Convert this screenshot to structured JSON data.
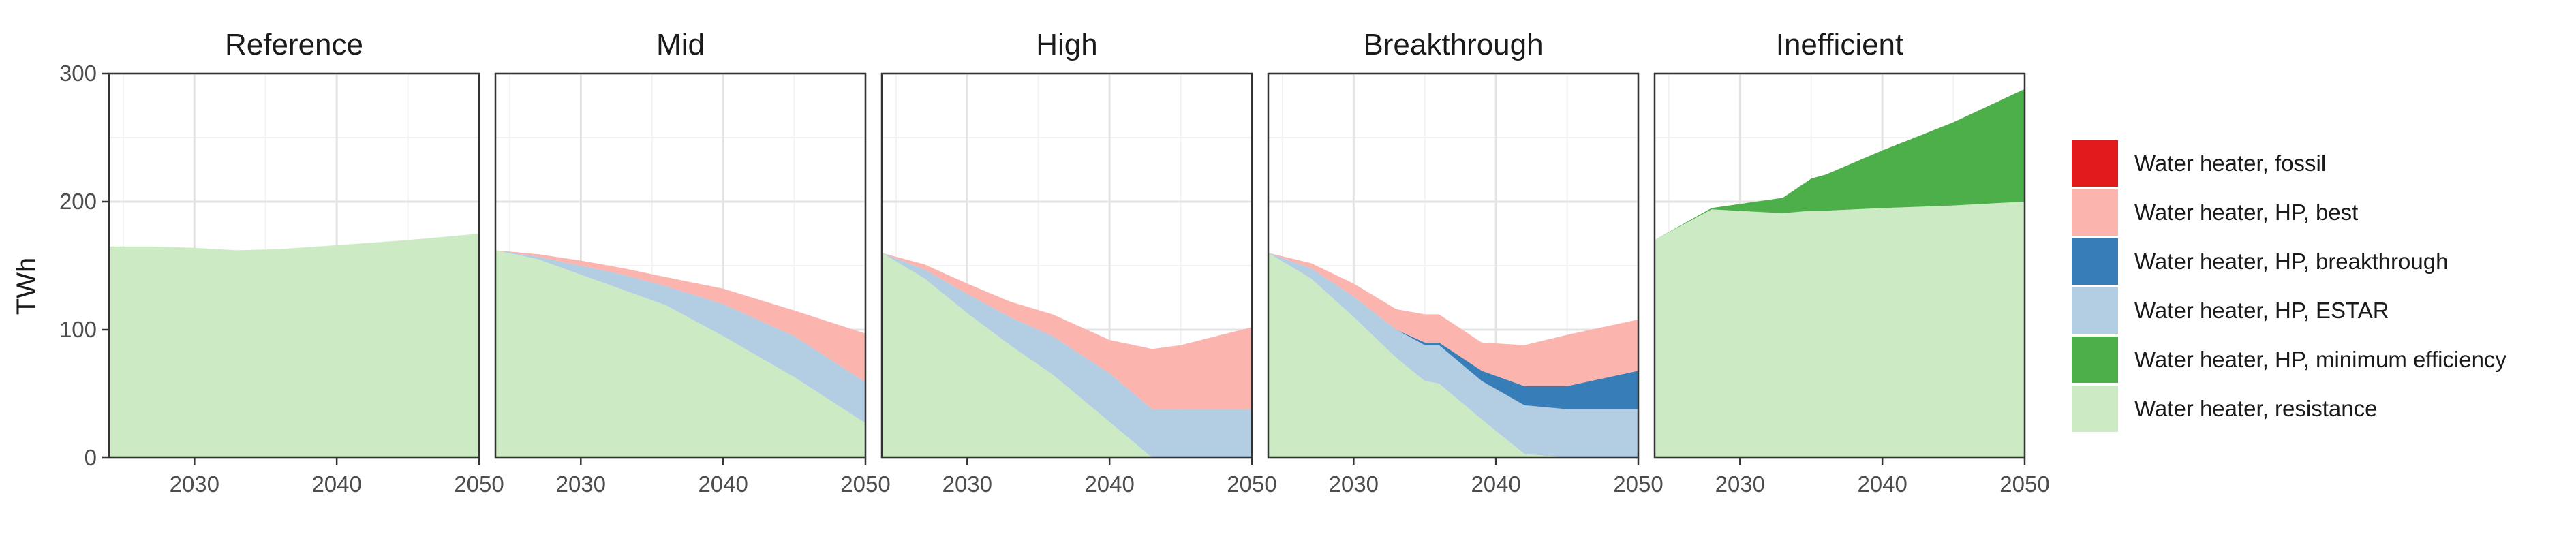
{
  "chart_data": {
    "type": "area",
    "stacked": true,
    "ylabel": "TWh",
    "ylim": [
      0,
      300
    ],
    "xlim": [
      2024,
      2050
    ],
    "x_ticks": [
      2030,
      2040,
      2050
    ],
    "y_ticks": [
      0,
      100,
      200,
      300
    ],
    "grid": true,
    "legend_position": "right",
    "series_order": [
      "Water heater, resistance",
      "Water heater, HP, ESTAR",
      "Water heater, HP, breakthrough",
      "Water heater, HP, best",
      "Water heater, HP, minimum efficiency",
      "Water heater, fossil"
    ],
    "legend": [
      {
        "name": "Water heater, fossil",
        "color": "#e31a1c"
      },
      {
        "name": "Water heater, HP, best",
        "color": "#fbb4ae"
      },
      {
        "name": "Water heater, HP, breakthrough",
        "color": "#377eb8"
      },
      {
        "name": "Water heater, HP, ESTAR",
        "color": "#b3cde3"
      },
      {
        "name": "Water heater, HP, minimum efficiency",
        "color": "#4daf4a"
      },
      {
        "name": "Water heater, resistance",
        "color": "#ccebc5"
      }
    ],
    "panels": [
      {
        "title": "Reference",
        "x": [
          2024,
          2027,
          2030,
          2033,
          2036,
          2040,
          2045,
          2050
        ],
        "series": [
          {
            "name": "Water heater, resistance",
            "values": [
              165,
              165,
              164,
              162,
              163,
              166,
              170,
              175
            ]
          }
        ]
      },
      {
        "title": "Mid",
        "x": [
          2024,
          2027,
          2030,
          2033,
          2036,
          2040,
          2045,
          2050
        ],
        "series": [
          {
            "name": "Water heater, resistance",
            "values": [
              162,
              155,
              143,
              131,
              119,
              95,
              63,
              27
            ]
          },
          {
            "name": "Water heater, HP, ESTAR",
            "values": [
              0,
              2,
              7,
              12,
              15,
              25,
              32,
              32
            ]
          },
          {
            "name": "Water heater, HP, best",
            "values": [
              0,
              2,
              4,
              5,
              7,
              12,
              20,
              38
            ]
          }
        ]
      },
      {
        "title": "High",
        "x": [
          2024,
          2027,
          2030,
          2033,
          2036,
          2040,
          2043,
          2045,
          2050
        ],
        "series": [
          {
            "name": "Water heater, resistance",
            "values": [
              160,
              140,
              113,
              88,
              65,
              28,
              0,
              0,
              0
            ]
          },
          {
            "name": "Water heater, HP, ESTAR",
            "values": [
              0,
              7,
              15,
              22,
              30,
              38,
              38,
              38,
              38
            ]
          },
          {
            "name": "Water heater, HP, best",
            "values": [
              0,
              4,
              8,
              12,
              17,
              26,
              47,
              50,
              64
            ]
          }
        ]
      },
      {
        "title": "Breakthrough",
        "x": [
          2024,
          2027,
          2030,
          2033,
          2035,
          2036,
          2039,
          2042,
          2045,
          2050
        ],
        "series": [
          {
            "name": "Water heater, resistance",
            "values": [
              160,
              140,
              110,
              78,
              60,
              58,
              30,
              3,
              0,
              0
            ]
          },
          {
            "name": "Water heater, HP, ESTAR",
            "values": [
              0,
              8,
              16,
              22,
              28,
              30,
              30,
              38,
              38,
              38
            ]
          },
          {
            "name": "Water heater, HP, breakthrough",
            "values": [
              0,
              0,
              0,
              0,
              2,
              2,
              8,
              15,
              18,
              30
            ]
          },
          {
            "name": "Water heater, HP, best",
            "values": [
              0,
              4,
              10,
              16,
              22,
              22,
              22,
              32,
              40,
              40
            ]
          }
        ]
      },
      {
        "title": "Inefficient",
        "x": [
          2024,
          2028,
          2033,
          2035,
          2036,
          2040,
          2045,
          2050
        ],
        "series": [
          {
            "name": "Water heater, resistance",
            "values": [
              170,
              194,
              191,
              193,
              193,
              195,
              197,
              200
            ]
          },
          {
            "name": "Water heater, HP, minimum efficiency",
            "values": [
              0,
              1,
              12,
              25,
              28,
              45,
              65,
              88
            ]
          }
        ]
      }
    ]
  }
}
